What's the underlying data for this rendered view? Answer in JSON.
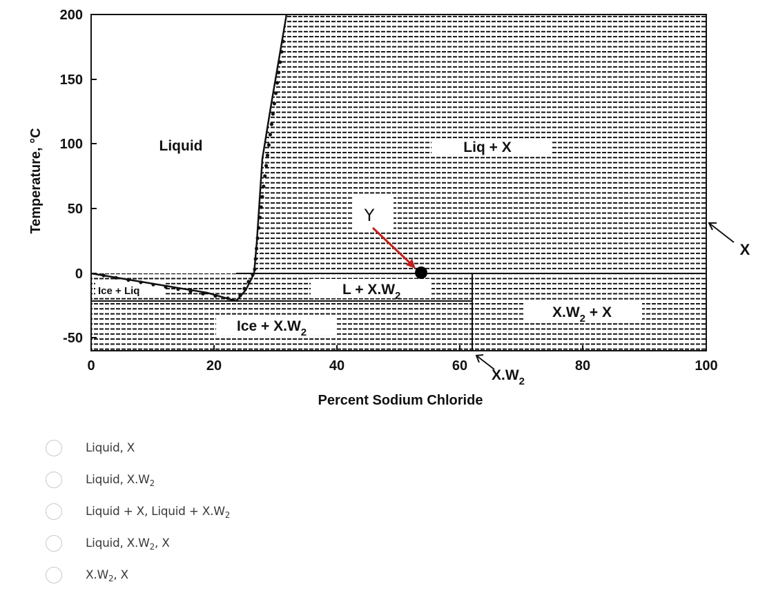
{
  "diagram": {
    "ylabel": "Temperature, °C",
    "xlabel": "Percent Sodium Chloride",
    "x_ticks": [
      "0",
      "20",
      "40",
      "60",
      "80",
      "100"
    ],
    "y_ticks": [
      "200",
      "150",
      "100",
      "50",
      "0",
      "-50"
    ],
    "regions": {
      "liquid": "Liquid",
      "liq_x": "Liq + X",
      "ice_liq": "Ice + Liq",
      "l_xw2_main": "L + X.W",
      "l_xw2_sub": "2",
      "ice_xw2_main": "Ice + X.W",
      "ice_xw2_sub": "2",
      "xw2_x_main": "X.W",
      "xw2_x_sub": "2",
      "xw2_x_tail": " + X"
    },
    "callouts": {
      "y": "Y",
      "x": "X",
      "xw2_main": "X.W",
      "xw2_sub": "2"
    },
    "arrow_color": "#c0201c",
    "ink_color": "#111111"
  },
  "options": [
    {
      "main": "Liquid, X",
      "sub": "",
      "tail": ""
    },
    {
      "main": "Liquid, X.W",
      "sub": "2",
      "tail": ""
    },
    {
      "main": "Liquid + X, Liquid + X.W",
      "sub": "2",
      "tail": ""
    },
    {
      "main": "Liquid, X.W",
      "sub": "2",
      "tail": ", X"
    },
    {
      "main": "X.W",
      "sub": "2",
      "tail": ", X"
    }
  ]
}
